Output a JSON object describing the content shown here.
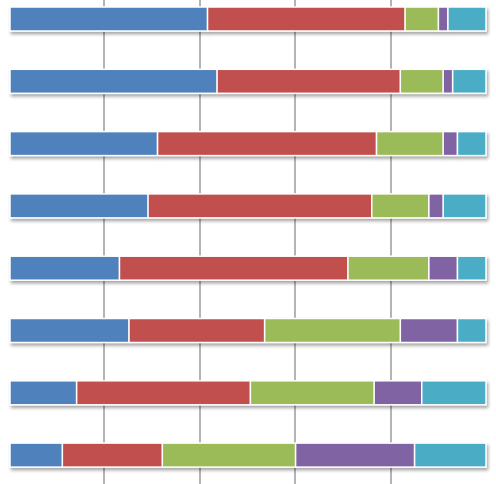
{
  "chart_data": {
    "type": "bar",
    "orientation": "horizontal",
    "stacked": "percent",
    "xlim": [
      0,
      100
    ],
    "grid": true,
    "legend": "none",
    "series": [
      {
        "color": "#4F81BD",
        "values": [
          41.5,
          43.5,
          31.0,
          29.0,
          23.0,
          25.0,
          14.0,
          11.0
        ]
      },
      {
        "color": "#C0504D",
        "values": [
          41.5,
          38.5,
          46.0,
          47.0,
          48.0,
          28.5,
          36.5,
          21.0
        ]
      },
      {
        "color": "#9BBB59",
        "values": [
          7.0,
          9.0,
          14.0,
          12.0,
          17.0,
          28.5,
          26.0,
          28.0
        ]
      },
      {
        "color": "#8064A2",
        "values": [
          2.0,
          2.0,
          3.0,
          3.0,
          6.0,
          12.0,
          10.0,
          25.0
        ]
      },
      {
        "color": "#4BACC6",
        "values": [
          8.0,
          7.0,
          6.0,
          9.0,
          6.0,
          6.0,
          13.5,
          15.0
        ]
      }
    ]
  }
}
